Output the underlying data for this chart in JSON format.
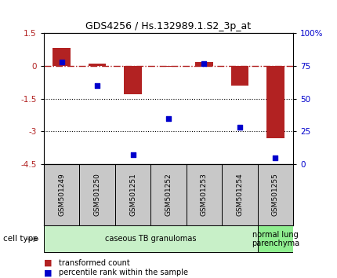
{
  "title": "GDS4256 / Hs.132989.1.S2_3p_at",
  "samples": [
    "GSM501249",
    "GSM501250",
    "GSM501251",
    "GSM501252",
    "GSM501253",
    "GSM501254",
    "GSM501255"
  ],
  "transformed_count": [
    0.82,
    0.1,
    -1.3,
    -0.05,
    0.2,
    -0.9,
    -3.3
  ],
  "percentile_rank": [
    78,
    60,
    7,
    35,
    77,
    28,
    5
  ],
  "red_color": "#b22222",
  "blue_color": "#0000cc",
  "ylim_left": [
    -4.5,
    1.5
  ],
  "ylim_right": [
    0,
    100
  ],
  "yticks_left": [
    1.5,
    0,
    -1.5,
    -3,
    -4.5
  ],
  "yticks_right": [
    0,
    25,
    50,
    75,
    100
  ],
  "ytick_right_labels": [
    "0",
    "25",
    "50",
    "75",
    "100%"
  ],
  "dotted_lines": [
    -1.5,
    -3
  ],
  "groups": [
    {
      "label": "caseous TB granulomas",
      "samples_range": [
        0,
        5
      ],
      "color": "#c8f0c8"
    },
    {
      "label": "normal lung\nparenchyma",
      "samples_range": [
        6,
        6
      ],
      "color": "#90ee90"
    }
  ],
  "legend_red": "transformed count",
  "legend_blue": "percentile rank within the sample",
  "cell_type_label": "cell type",
  "sample_box_color": "#c8c8c8",
  "bar_width": 0.5
}
